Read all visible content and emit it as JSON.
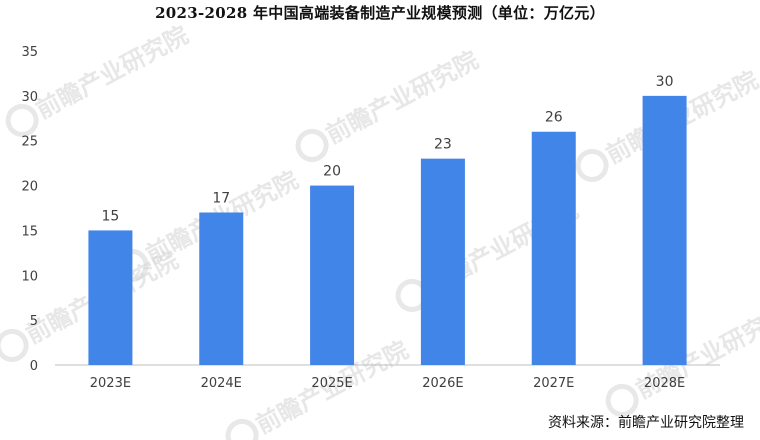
{
  "header": {
    "title": "2023-2028 年中国高端装备制造产业规模预测（单位：万亿元）"
  },
  "footer": {
    "source": "资料来源：前瞻产业研究院整理"
  },
  "watermark": {
    "text": "前瞻产业研究院",
    "icon": "qianzhan-logo-icon"
  },
  "colors": {
    "bar": "#4285e8",
    "axis": "#bfbfbf",
    "text": "#404040",
    "watermark": "#d5d5d5"
  },
  "chart_data": {
    "type": "bar",
    "title": "2023-2028 年中国高端装备制造产业规模预测（单位：万亿元）",
    "categories": [
      "2023E",
      "2024E",
      "2025E",
      "2026E",
      "2027E",
      "2028E"
    ],
    "values": [
      15,
      17,
      20,
      23,
      26,
      30
    ],
    "data_labels": [
      "15",
      "17",
      "20",
      "23",
      "26",
      "30"
    ],
    "y_ticks": [
      0,
      5,
      10,
      15,
      20,
      25,
      30,
      35
    ],
    "ylim": [
      0,
      35
    ],
    "grid": false,
    "legend": "none",
    "xlabel": "",
    "ylabel": ""
  }
}
